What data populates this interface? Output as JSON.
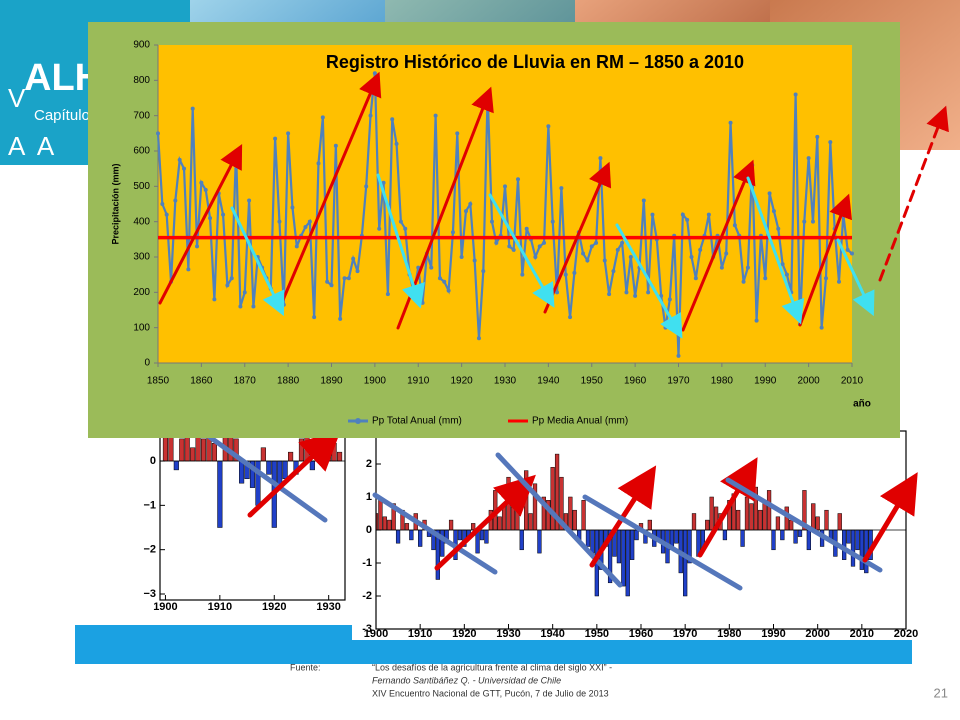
{
  "header": {
    "title": "ALH",
    "subtitle": "Capítulo C",
    "left_letter": "V",
    "lower_letters": "A  A"
  },
  "footer": {
    "source_label": "Fuente:",
    "lines": [
      "“Los desafíos de la agricultura frente al clima del siglo XXI” -",
      "Fernando Santibáñez Q. - Universidad de Chile",
      "XIV Encuentro Nacional de GTT, Pucón, 7 de Julio de 2013"
    ]
  },
  "page_number": "21",
  "chart_data": [
    {
      "type": "line",
      "title": "Registro Histórico de Lluvia en RM – 1850 a 2010",
      "ylabel": "Precipitación  (mm)",
      "xlabel": "año",
      "x": [
        1850,
        1851,
        1852,
        1853,
        1854,
        1855,
        1856,
        1857,
        1858,
        1859,
        1860,
        1861,
        1862,
        1863,
        1864,
        1865,
        1866,
        1867,
        1868,
        1869,
        1870,
        1871,
        1872,
        1873,
        1874,
        1875,
        1876,
        1877,
        1878,
        1879,
        1880,
        1881,
        1882,
        1883,
        1884,
        1885,
        1886,
        1887,
        1888,
        1889,
        1890,
        1891,
        1892,
        1893,
        1894,
        1895,
        1896,
        1897,
        1898,
        1899,
        1900,
        1901,
        1902,
        1903,
        1904,
        1905,
        1906,
        1907,
        1908,
        1909,
        1910,
        1911,
        1912,
        1913,
        1914,
        1915,
        1916,
        1917,
        1918,
        1919,
        1920,
        1921,
        1922,
        1923,
        1924,
        1925,
        1926,
        1927,
        1928,
        1929,
        1930,
        1931,
        1932,
        1933,
        1934,
        1935,
        1936,
        1937,
        1938,
        1939,
        1940,
        1941,
        1942,
        1943,
        1944,
        1945,
        1946,
        1947,
        1948,
        1949,
        1950,
        1951,
        1952,
        1953,
        1954,
        1955,
        1956,
        1957,
        1958,
        1959,
        1960,
        1961,
        1962,
        1963,
        1964,
        1965,
        1966,
        1967,
        1968,
        1969,
        1970,
        1971,
        1972,
        1973,
        1974,
        1975,
        1976,
        1977,
        1978,
        1979,
        1980,
        1981,
        1982,
        1983,
        1984,
        1985,
        1986,
        1987,
        1988,
        1989,
        1990,
        1991,
        1992,
        1993,
        1994,
        1995,
        1996,
        1997,
        1998,
        1999,
        2000,
        2001,
        2002,
        2003,
        2004,
        2005,
        2006,
        2007,
        2008,
        2009,
        2010
      ],
      "series": [
        {
          "name": "Pp Total Anual (mm)",
          "color": "#4f81bd",
          "values": [
            650,
            450,
            420,
            230,
            460,
            575,
            550,
            265,
            720,
            330,
            510,
            490,
            410,
            180,
            480,
            420,
            220,
            240,
            600,
            160,
            200,
            460,
            160,
            300,
            270,
            240,
            210,
            635,
            400,
            165,
            650,
            440,
            330,
            360,
            385,
            400,
            130,
            565,
            695,
            230,
            220,
            615,
            125,
            240,
            240,
            295,
            260,
            360,
            500,
            700,
            820,
            380,
            510,
            195,
            690,
            620,
            400,
            380,
            250,
            200,
            270,
            170,
            310,
            270,
            700,
            240,
            230,
            205,
            370,
            650,
            300,
            430,
            450,
            290,
            70,
            260,
            760,
            400,
            340,
            360,
            500,
            330,
            320,
            520,
            250,
            380,
            350,
            300,
            330,
            340,
            670,
            400,
            200,
            495,
            250,
            130,
            255,
            370,
            310,
            290,
            330,
            340,
            580,
            290,
            195,
            260,
            320,
            340,
            200,
            300,
            190,
            270,
            460,
            200,
            420,
            350,
            190,
            100,
            180,
            360,
            20,
            420,
            405,
            300,
            240,
            320,
            360,
            420,
            300,
            360,
            270,
            310,
            680,
            390,
            360,
            230,
            270,
            560,
            120,
            360,
            240,
            480,
            430,
            380,
            280,
            250,
            200,
            760,
            110,
            400,
            580,
            400,
            640,
            100,
            240,
            625,
            380,
            230,
            420,
            320,
            310
          ]
        },
        {
          "name": "Pp Media Anual (mm)",
          "color": "#ff0000",
          "x": [
            1850,
            2010
          ],
          "values": [
            355,
            355
          ]
        }
      ],
      "xlim": [
        1850,
        2010
      ],
      "xticks": [
        1850,
        1860,
        1870,
        1880,
        1890,
        1900,
        1910,
        1920,
        1930,
        1940,
        1950,
        1960,
        1970,
        1980,
        1990,
        2000,
        2010
      ],
      "ylim": [
        0,
        900
      ],
      "yticks": [
        0,
        100,
        200,
        300,
        400,
        500,
        600,
        700,
        800,
        900
      ],
      "legend": "bottom"
    },
    {
      "type": "bar",
      "colors": {
        "positive": "#c83232",
        "negative": "#2040c8"
      },
      "x": [
        1900,
        1901,
        1902,
        1903,
        1904,
        1905,
        1906,
        1907,
        1908,
        1909,
        1910,
        1911,
        1912,
        1913,
        1914,
        1915,
        1916,
        1917,
        1918,
        1919,
        1920,
        1921,
        1922,
        1923,
        1924,
        1925,
        1926,
        1927,
        1928,
        1929,
        1930,
        1931,
        1932
      ],
      "values": [
        0.7,
        0.7,
        -0.2,
        0.5,
        0.7,
        0.3,
        0.6,
        0.5,
        0.7,
        0.4,
        -1.5,
        0.6,
        0.6,
        0.5,
        -0.5,
        -0.4,
        -0.6,
        -1.0,
        0.3,
        -0.3,
        -1.5,
        -0.6,
        -0.4,
        0.2,
        -0.3,
        0.5,
        0.6,
        -0.2,
        0.7,
        0.6,
        0.5,
        0.4,
        0.2
      ],
      "xlim": [
        1899,
        1933
      ],
      "xticks": [
        1900,
        1910,
        1920,
        1930
      ],
      "ylim": [
        -3,
        0.7
      ],
      "yticks": [
        0,
        {
          "value": -1,
          "label": "−1"
        },
        {
          "value": -2,
          "label": "−2"
        },
        {
          "value": -3,
          "label": "−3"
        }
      ]
    },
    {
      "type": "bar",
      "colors": {
        "positive": "#c83232",
        "negative": "#2040c8"
      },
      "x": [
        1900,
        1901,
        1902,
        1903,
        1904,
        1905,
        1906,
        1907,
        1908,
        1909,
        1910,
        1911,
        1912,
        1913,
        1914,
        1915,
        1916,
        1917,
        1918,
        1919,
        1920,
        1921,
        1922,
        1923,
        1924,
        1925,
        1926,
        1927,
        1928,
        1929,
        1930,
        1931,
        1932,
        1933,
        1934,
        1935,
        1936,
        1937,
        1938,
        1939,
        1940,
        1941,
        1942,
        1943,
        1944,
        1945,
        1946,
        1947,
        1948,
        1949,
        1950,
        1951,
        1952,
        1953,
        1954,
        1955,
        1956,
        1957,
        1958,
        1959,
        1960,
        1961,
        1962,
        1963,
        1964,
        1965,
        1966,
        1967,
        1968,
        1969,
        1970,
        1971,
        1972,
        1973,
        1974,
        1975,
        1976,
        1977,
        1978,
        1979,
        1980,
        1981,
        1982,
        1983,
        1984,
        1985,
        1986,
        1987,
        1988,
        1989,
        1990,
        1991,
        1992,
        1993,
        1994,
        1995,
        1996,
        1997,
        1998,
        1999,
        2000,
        2001,
        2002,
        2003,
        2004,
        2005,
        2006,
        2007,
        2008,
        2009,
        2010,
        2011,
        2012
      ],
      "values": [
        0.5,
        0.9,
        0.4,
        0.3,
        0.8,
        -0.4,
        0.6,
        0.2,
        -0.3,
        0.5,
        -0.5,
        0.3,
        -0.2,
        -0.6,
        -1.5,
        -0.8,
        -0.4,
        0.3,
        -0.9,
        -0.3,
        -0.5,
        -0.2,
        0.2,
        -0.7,
        -0.3,
        -0.4,
        0.6,
        1.2,
        0.4,
        0.8,
        1.6,
        0.7,
        1.2,
        -0.6,
        1.8,
        0.5,
        1.4,
        -0.7,
        1.0,
        0.9,
        1.9,
        2.3,
        1.6,
        0.5,
        1.0,
        0.6,
        -0.3,
        0.9,
        -0.5,
        -0.7,
        -2.0,
        -1.2,
        -0.5,
        -1.6,
        -0.8,
        -1.0,
        -1.7,
        -2.0,
        -0.9,
        -0.3,
        0.2,
        -0.4,
        0.3,
        -0.5,
        -0.3,
        -0.7,
        -1.0,
        -0.6,
        -0.4,
        -1.3,
        -2.0,
        -1.0,
        0.5,
        -0.8,
        -0.6,
        0.3,
        1.0,
        0.7,
        0.5,
        -0.3,
        0.9,
        1.1,
        0.6,
        -0.5,
        1.0,
        0.8,
        1.3,
        0.6,
        0.9,
        1.2,
        -0.6,
        0.4,
        -0.3,
        0.7,
        0.3,
        -0.4,
        -0.2,
        1.2,
        -0.6,
        0.8,
        0.4,
        -0.5,
        0.6,
        -0.3,
        -0.8,
        0.5,
        -0.9,
        -0.4,
        -1.1,
        -0.6,
        -1.2,
        -1.3,
        -0.9
      ],
      "xlim": [
        1900,
        2020
      ],
      "xticks": [
        1900,
        1910,
        1920,
        1930,
        1940,
        1950,
        1960,
        1970,
        1980,
        1990,
        2000,
        2010,
        2020
      ],
      "ylim": [
        -3,
        3
      ],
      "yticks": [
        2,
        1,
        0,
        -1,
        -2,
        -3
      ]
    }
  ]
}
